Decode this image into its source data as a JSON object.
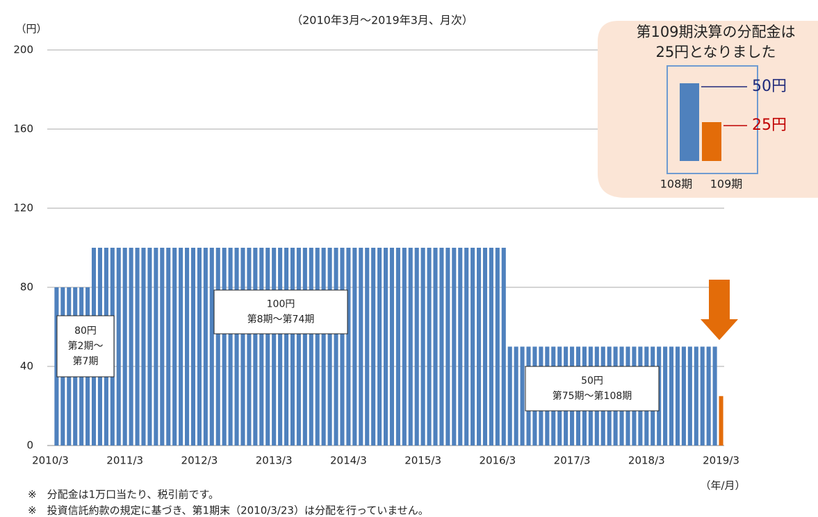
{
  "chart_data": [
    {
      "type": "bar",
      "subtitle": "（2010年3月～2019年3月、月次）",
      "y_label": "（円）",
      "x_label": "（年/月）",
      "categories": [
        "2010/3",
        null,
        null,
        null,
        null,
        null,
        null,
        null,
        null,
        null,
        null,
        null,
        "2011/3",
        null,
        null,
        null,
        null,
        null,
        null,
        null,
        null,
        null,
        null,
        null,
        "2012/3",
        null,
        null,
        null,
        null,
        null,
        null,
        null,
        null,
        null,
        null,
        null,
        "2013/3",
        null,
        null,
        null,
        null,
        null,
        null,
        null,
        null,
        null,
        null,
        null,
        "2014/3",
        null,
        null,
        null,
        null,
        null,
        null,
        null,
        null,
        null,
        null,
        null,
        "2015/3",
        null,
        null,
        null,
        null,
        null,
        null,
        null,
        null,
        null,
        null,
        null,
        "2016/3",
        null,
        null,
        null,
        null,
        null,
        null,
        null,
        null,
        null,
        null,
        null,
        "2017/3",
        null,
        null,
        null,
        null,
        null,
        null,
        null,
        null,
        null,
        null,
        null,
        "2018/3",
        null,
        null,
        null,
        null,
        null,
        null,
        null,
        null,
        null,
        null,
        null,
        "2019/3"
      ],
      "series": [
        {
          "color": "#4f81bd",
          "values": [
            0,
            80,
            80,
            80,
            80,
            80,
            80,
            100,
            100,
            100,
            100,
            100,
            100,
            100,
            100,
            100,
            100,
            100,
            100,
            100,
            100,
            100,
            100,
            100,
            100,
            100,
            100,
            100,
            100,
            100,
            100,
            100,
            100,
            100,
            100,
            100,
            100,
            100,
            100,
            100,
            100,
            100,
            100,
            100,
            100,
            100,
            100,
            100,
            100,
            100,
            100,
            100,
            100,
            100,
            100,
            100,
            100,
            100,
            100,
            100,
            100,
            100,
            100,
            100,
            100,
            100,
            100,
            100,
            100,
            100,
            100,
            100,
            100,
            100,
            50,
            50,
            50,
            50,
            50,
            50,
            50,
            50,
            50,
            50,
            50,
            50,
            50,
            50,
            50,
            50,
            50,
            50,
            50,
            50,
            50,
            50,
            50,
            50,
            50,
            50,
            50,
            50,
            50,
            50,
            50,
            50,
            50,
            50,
            null
          ]
        },
        {
          "color": "#e36c09",
          "values": [
            null,
            null,
            null,
            null,
            null,
            null,
            null,
            null,
            null,
            null,
            null,
            null,
            null,
            null,
            null,
            null,
            null,
            null,
            null,
            null,
            null,
            null,
            null,
            null,
            null,
            null,
            null,
            null,
            null,
            null,
            null,
            null,
            null,
            null,
            null,
            null,
            null,
            null,
            null,
            null,
            null,
            null,
            null,
            null,
            null,
            null,
            null,
            null,
            null,
            null,
            null,
            null,
            null,
            null,
            null,
            null,
            null,
            null,
            null,
            null,
            null,
            null,
            null,
            null,
            null,
            null,
            null,
            null,
            null,
            null,
            null,
            null,
            null,
            null,
            null,
            null,
            null,
            null,
            null,
            null,
            null,
            null,
            null,
            null,
            null,
            null,
            null,
            null,
            null,
            null,
            null,
            null,
            null,
            null,
            null,
            null,
            null,
            null,
            null,
            null,
            null,
            null,
            null,
            null,
            null,
            null,
            null,
            null,
            25
          ]
        }
      ],
      "ylim": [
        0,
        200
      ],
      "yticks": [
        0,
        40,
        80,
        120,
        160,
        200
      ],
      "grid": true,
      "annotations": [
        {
          "lines": [
            "80円",
            "第2期～",
            "第7期"
          ]
        },
        {
          "lines": [
            "100円",
            "第8期～第74期"
          ]
        },
        {
          "lines": [
            "50円",
            "第75期～第108期"
          ]
        }
      ],
      "notes": [
        "※　分配金は1万口当たり、税引前です。",
        "※　投資信託約款の規定に基づき、第1期末（2010/3/23）は分配を行っていません。"
      ]
    },
    {
      "type": "bar",
      "title": [
        "第109期決算の分配金は",
        "25円となりました"
      ],
      "categories": [
        "108期",
        "109期"
      ],
      "values": [
        50,
        25
      ],
      "value_labels": [
        "50円",
        "25円"
      ],
      "colors": [
        "#4f81bd",
        "#e36c09"
      ],
      "label_colors": [
        "#1f2a7a",
        "#c00000"
      ]
    }
  ]
}
